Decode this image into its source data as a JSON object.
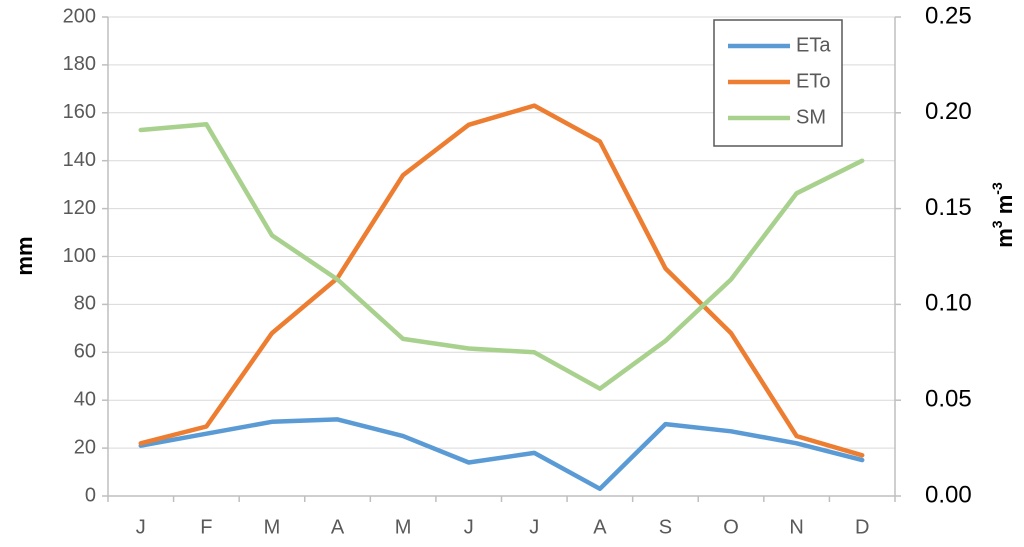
{
  "chart_data": {
    "type": "line",
    "categories": [
      "J",
      "F",
      "M",
      "A",
      "M",
      "J",
      "J",
      "A",
      "S",
      "O",
      "N",
      "D"
    ],
    "series": [
      {
        "name": "ETa",
        "axis": "left",
        "color": "#5B9BD5",
        "values": [
          21,
          26,
          31,
          32,
          25,
          14,
          18,
          3,
          30,
          27,
          22,
          15
        ]
      },
      {
        "name": "ETo",
        "axis": "left",
        "color": "#ED7D31",
        "values": [
          22,
          29,
          68,
          91,
          134,
          155,
          163,
          148,
          95,
          68,
          25,
          17
        ]
      },
      {
        "name": "SM",
        "axis": "right",
        "color": "#A9D18E",
        "values": [
          0.191,
          0.194,
          0.136,
          0.113,
          0.082,
          0.077,
          0.075,
          0.056,
          0.081,
          0.113,
          0.158,
          0.175
        ]
      }
    ],
    "ylabel": "mm",
    "ylim": [
      0,
      200
    ],
    "yticks": [
      "0",
      "20",
      "40",
      "60",
      "80",
      "100",
      "120",
      "140",
      "160",
      "180",
      "200"
    ],
    "y2label_base": "m",
    "y2label_sup": "3",
    "y2label_base2": " m",
    "y2label_sup2": "-3",
    "y2lim": [
      0,
      0.25
    ],
    "y2ticks": [
      "0.00",
      "0.05",
      "0.10",
      "0.15",
      "0.20",
      "0.25"
    ],
    "grid": true,
    "legend_position": "top-right"
  }
}
